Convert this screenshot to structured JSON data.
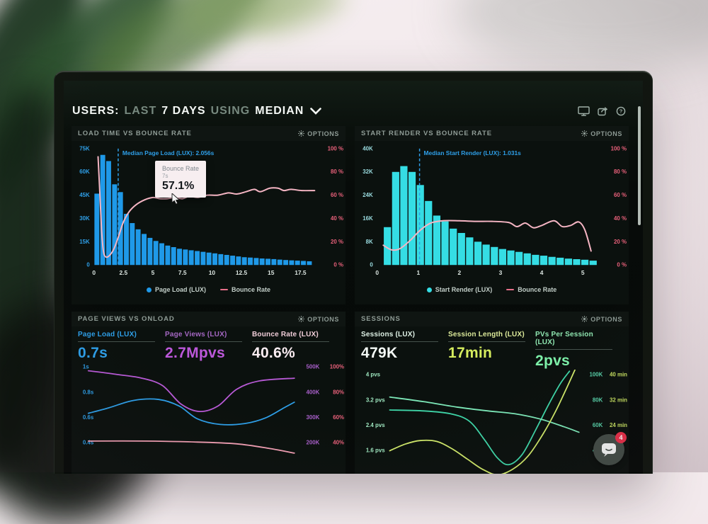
{
  "header": {
    "segments": [
      {
        "text": "USERS:",
        "emphasis": "strong"
      },
      {
        "text": "LAST",
        "emphasis": "muted"
      },
      {
        "text": "7 DAYS",
        "emphasis": "strong"
      },
      {
        "text": "USING",
        "emphasis": "muted"
      },
      {
        "text": "MEDIAN",
        "emphasis": "strong"
      }
    ]
  },
  "panels": [
    {
      "title": "LOAD TIME VS BOUNCE RATE",
      "options_label": "OPTIONS"
    },
    {
      "title": "START RENDER VS BOUNCE RATE",
      "options_label": "OPTIONS"
    },
    {
      "title": "PAGE VIEWS VS ONLOAD",
      "options_label": "OPTIONS"
    },
    {
      "title": "SESSIONS",
      "options_label": "OPTIONS"
    }
  ],
  "chart_data": [
    {
      "type": "bar",
      "title": "LOAD TIME VS BOUNCE RATE",
      "x_ticks": [
        0,
        2.5,
        5,
        7.5,
        10,
        12.5,
        15,
        17.5
      ],
      "x_max": 19,
      "y_left": {
        "color": "#2e9fe8",
        "max": 75,
        "ticks": [
          "0",
          "15K",
          "30K",
          "45K",
          "60K",
          "75K"
        ]
      },
      "y_right": {
        "color": "#e8607a",
        "max": 100,
        "ticks": [
          "0 %",
          "20 %",
          "40 %",
          "60 %",
          "80 %",
          "100 %"
        ]
      },
      "bar_series": {
        "name": "Page Load (LUX)",
        "color": "#1f99e8",
        "x_start": 0,
        "x_step": 0.5,
        "values": [
          46,
          71,
          67,
          52,
          47,
          33,
          27,
          23,
          20,
          17.5,
          15.5,
          14,
          12.5,
          11.5,
          10.5,
          10,
          9.5,
          9,
          8.5,
          8,
          7.5,
          7,
          6.5,
          6,
          5.5,
          5,
          4.8,
          4.5,
          4.2,
          4,
          3.8,
          3.5,
          3.2,
          3,
          2.8,
          2.6,
          2.4
        ]
      },
      "line_series": {
        "name": "Bounce Rate",
        "color": "#f6b6c4",
        "points": [
          [
            0.35,
            93
          ],
          [
            0.5,
            62
          ],
          [
            0.65,
            30
          ],
          [
            0.8,
            12
          ],
          [
            1.0,
            7
          ],
          [
            1.3,
            8
          ],
          [
            1.7,
            14
          ],
          [
            2.1,
            25
          ],
          [
            2.5,
            37
          ],
          [
            3.0,
            46
          ],
          [
            3.6,
            52
          ],
          [
            4.3,
            56
          ],
          [
            5.0,
            58
          ],
          [
            5.6,
            57
          ],
          [
            6.2,
            57
          ],
          [
            6.9,
            58
          ],
          [
            7.5,
            57
          ],
          [
            8.1,
            59
          ],
          [
            8.8,
            58
          ],
          [
            9.6,
            60
          ],
          [
            10.5,
            60
          ],
          [
            11.4,
            62
          ],
          [
            12.1,
            61
          ],
          [
            12.9,
            63
          ],
          [
            13.6,
            65
          ],
          [
            14.1,
            63
          ],
          [
            14.9,
            66
          ],
          [
            15.6,
            66
          ],
          [
            16.1,
            64
          ],
          [
            16.7,
            65
          ],
          [
            17.6,
            64
          ],
          [
            18.7,
            64
          ]
        ]
      },
      "median": {
        "x": 2.056,
        "label": "Median Page Load (LUX): 2.056s",
        "color": "#2e9fe8"
      },
      "tooltip": {
        "title": "Bounce Rate",
        "subtitle": "7s",
        "value": "57.1%"
      }
    },
    {
      "type": "bar",
      "title": "START RENDER VS BOUNCE RATE",
      "x_ticks": [
        0,
        1,
        2,
        3,
        4,
        5
      ],
      "x_max": 5.45,
      "y_left": {
        "color": "#9adce0",
        "max": 40,
        "ticks": [
          "0",
          "8K",
          "16K",
          "24K",
          "32K",
          "40K"
        ]
      },
      "y_right": {
        "color": "#e8607a",
        "max": 100,
        "ticks": [
          "0 %",
          "20 %",
          "40 %",
          "60 %",
          "80 %",
          "100 %"
        ]
      },
      "bar_series": {
        "name": "Start Render (LUX)",
        "color": "#35dde4",
        "x_start": 0.15,
        "x_step": 0.2,
        "values": [
          13,
          32,
          34,
          32,
          27.5,
          22,
          17,
          15,
          12.5,
          11,
          9.5,
          8,
          7,
          6.2,
          5.5,
          5,
          4.5,
          4,
          3.5,
          3.2,
          2.8,
          2.5,
          2.2,
          2,
          1.8,
          1.5
        ]
      },
      "line_series": {
        "name": "Bounce Rate",
        "color": "#f6b6c4",
        "points": [
          [
            0.15,
            17
          ],
          [
            0.35,
            13
          ],
          [
            0.55,
            14
          ],
          [
            0.8,
            21
          ],
          [
            1.05,
            30
          ],
          [
            1.3,
            36
          ],
          [
            1.6,
            38
          ],
          [
            2.0,
            38
          ],
          [
            2.4,
            37.5
          ],
          [
            2.8,
            37.5
          ],
          [
            3.2,
            36.5
          ],
          [
            3.4,
            33
          ],
          [
            3.6,
            36
          ],
          [
            3.8,
            32
          ],
          [
            4.0,
            34
          ],
          [
            4.3,
            38
          ],
          [
            4.5,
            33
          ],
          [
            4.7,
            34
          ],
          [
            4.9,
            37
          ],
          [
            5.05,
            30
          ],
          [
            5.2,
            12
          ]
        ]
      },
      "median": {
        "x": 1.031,
        "label": "Median Start Render (LUX): 1.031s",
        "color": "#2e9fe8"
      }
    },
    {
      "type": "line",
      "title": "PAGE VIEWS VS ONLOAD",
      "metrics": [
        {
          "label": "Page Load (LUX)",
          "value": "0.7s",
          "label_color": "#2e9fe8",
          "value_color": "#2e9fe8"
        },
        {
          "label": "Page Views (LUX)",
          "value": "2.7Mpvs",
          "label_color": "#a467c2",
          "value_color": "#bc58da"
        },
        {
          "label": "Bounce Rate (LUX)",
          "value": "40.6%",
          "label_color": "#f0cdd8",
          "value_color": "#fceef3"
        }
      ],
      "axes": {
        "left": {
          "color": "#2e9fe8",
          "ticks": [
            "1s",
            "0.8s",
            "0.6s",
            "0.4s"
          ]
        },
        "right1": {
          "color": "#a85fc9",
          "ticks": [
            "500K",
            "400K",
            "300K",
            "200K"
          ]
        },
        "right2": {
          "color": "#e8607a",
          "ticks": [
            "100%",
            "80%",
            "60%",
            "40%"
          ]
        }
      },
      "series": [
        {
          "name": "Page Views (LUX)",
          "color": "#b85ad6",
          "points": [
            [
              0,
              6
            ],
            [
              14,
              10
            ],
            [
              26,
              14
            ],
            [
              36,
              22
            ],
            [
              45,
              42
            ],
            [
              54,
              50
            ],
            [
              63,
              44
            ],
            [
              72,
              26
            ],
            [
              83,
              17
            ],
            [
              100,
              14
            ]
          ]
        },
        {
          "name": "Page Load (LUX)",
          "color": "#2e9fe8",
          "points": [
            [
              0,
              52
            ],
            [
              10,
              46
            ],
            [
              22,
              38
            ],
            [
              34,
              37
            ],
            [
              44,
              44
            ],
            [
              53,
              58
            ],
            [
              64,
              64
            ],
            [
              76,
              63
            ],
            [
              86,
              57
            ],
            [
              95,
              46
            ],
            [
              100,
              40
            ]
          ]
        },
        {
          "name": "Bounce Rate (LUX)",
          "color": "#f2a0b4",
          "points": [
            [
              0,
              82
            ],
            [
              28,
              82
            ],
            [
              52,
              83
            ],
            [
              72,
              85
            ],
            [
              88,
              90
            ],
            [
              100,
              95
            ]
          ]
        }
      ]
    },
    {
      "type": "line",
      "title": "SESSIONS",
      "metrics": [
        {
          "label": "Sessions (LUX)",
          "value": "479K",
          "label_color": "#dff2e6",
          "value_color": "#f4faf6"
        },
        {
          "label": "Session Length (LUX)",
          "value": "17min",
          "label_color": "#dcea9a",
          "value_color": "#d6ed5e"
        },
        {
          "label": "PVs Per Session (LUX)",
          "value": "2pvs",
          "label_color": "#8fe6b0",
          "value_color": "#7df0a8"
        }
      ],
      "axes": {
        "left": {
          "color": "#9fe8c0",
          "ticks": [
            "4 pvs",
            "3.2 pvs",
            "2.4 pvs",
            "1.6 pvs"
          ]
        },
        "right1": {
          "color": "#57d0a8",
          "ticks": [
            "100K",
            "80K",
            "60K",
            "40K"
          ]
        },
        "right2": {
          "color": "#c6e060",
          "ticks": [
            "40 min",
            "32 min",
            "24 min"
          ]
        }
      },
      "series": [
        {
          "name": "Sessions (LUX)",
          "color": "#3fd6a8",
          "points": [
            [
              0,
              40
            ],
            [
              18,
              41
            ],
            [
              32,
              44
            ],
            [
              42,
              52
            ],
            [
              50,
              72
            ],
            [
              57,
              92
            ],
            [
              63,
              99
            ],
            [
              70,
              88
            ],
            [
              77,
              62
            ],
            [
              84,
              34
            ],
            [
              90,
              12
            ],
            [
              95,
              -2
            ]
          ]
        },
        {
          "name": "PVs Per Session (LUX)",
          "color": "#7de8b8",
          "points": [
            [
              0,
              26
            ],
            [
              18,
              31
            ],
            [
              36,
              37
            ],
            [
              52,
              41
            ],
            [
              66,
              44
            ],
            [
              80,
              50
            ],
            [
              92,
              58
            ],
            [
              100,
              64
            ]
          ]
        },
        {
          "name": "Session Length (LUX)",
          "color": "#cfe86a",
          "points": [
            [
              0,
              84
            ],
            [
              8,
              77
            ],
            [
              16,
              73
            ],
            [
              25,
              74
            ],
            [
              33,
              82
            ],
            [
              41,
              93
            ],
            [
              49,
              104
            ],
            [
              57,
              110
            ],
            [
              65,
              104
            ],
            [
              73,
              90
            ],
            [
              81,
              66
            ],
            [
              88,
              40
            ],
            [
              94,
              14
            ],
            [
              98,
              -4
            ]
          ]
        }
      ]
    }
  ],
  "chat_widget": {
    "badge": "4"
  }
}
